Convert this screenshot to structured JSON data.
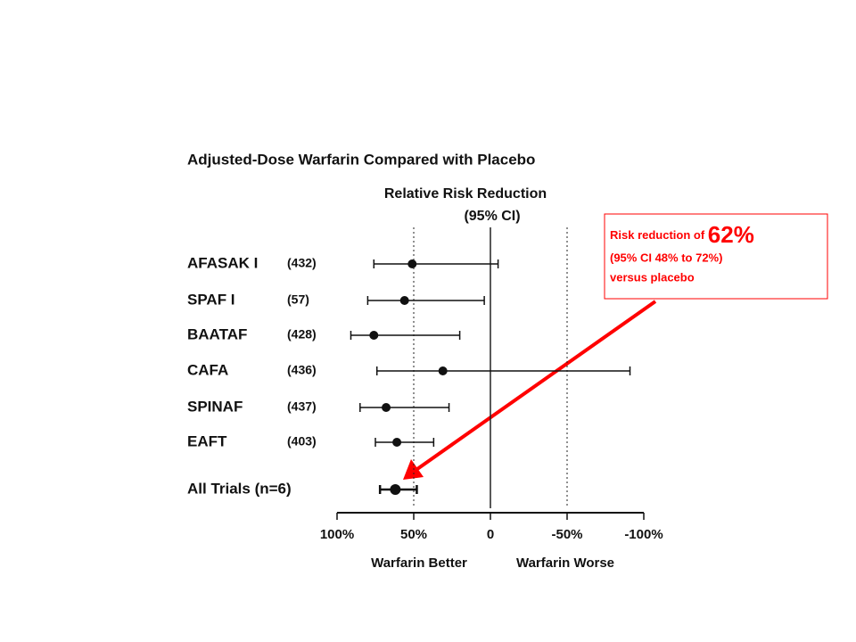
{
  "chart_data": {
    "type": "forest",
    "title": "Adjusted-Dose Warfarin Compared with Placebo",
    "subtitle": [
      "Relative Risk Reduction",
      "(95% CI)"
    ],
    "categories": [
      "AFASAK I",
      "SPAF I",
      "BAATAF",
      "CAFA",
      "SPINAF",
      "EAFT",
      "All Trials (n=6)"
    ],
    "counts": [
      "(432)",
      "(57)",
      "(428)",
      "(436)",
      "(437)",
      "(403)",
      null
    ],
    "values": [
      51,
      56,
      76,
      31,
      68,
      61,
      62
    ],
    "ci_high": [
      76,
      80,
      91,
      74,
      85,
      75,
      72
    ],
    "ci_low": [
      -5,
      4,
      20,
      -91,
      27,
      37,
      48
    ],
    "xlim": [
      100,
      -100
    ],
    "xticks": [
      {
        "value": 100,
        "label": "100%"
      },
      {
        "value": 50,
        "label": "50%"
      },
      0,
      {
        "value": -50,
        "label": "-50%"
      },
      {
        "value": -100,
        "label": "-100%"
      }
    ],
    "reference_lines": [
      50,
      0,
      -50
    ],
    "xlabels": [
      "Warfarin Better",
      "Warfarin Worse"
    ],
    "color": "#111111",
    "annotation": {
      "prefix": "Risk reduction of ",
      "highlight": "62%",
      "lines": [
        "(95% CI 48% to 72%)",
        "versus placebo"
      ],
      "color": "#ff0000"
    }
  }
}
